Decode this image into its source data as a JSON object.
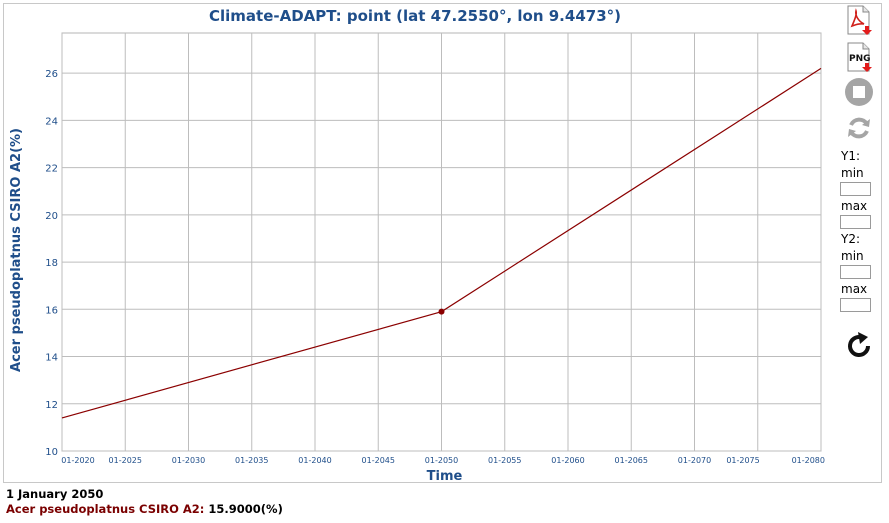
{
  "chart_data": {
    "type": "line",
    "title": "Climate-ADAPT: point (lat 47.2550°, lon 9.4473°)",
    "xlabel": "Time",
    "ylabel": "Acer pseudoplatnus CSIRO A2(%)",
    "x_ticks": [
      "01-2020",
      "01-2025",
      "01-2030",
      "01-2035",
      "01-2040",
      "01-2045",
      "01-2050",
      "01-2055",
      "01-2060",
      "01-2065",
      "01-2070",
      "01-2075",
      "01-2080"
    ],
    "y_ticks": [
      "10",
      "12",
      "14",
      "16",
      "18",
      "20",
      "22",
      "24",
      "26"
    ],
    "xlim": [
      2020,
      2080
    ],
    "ylim": [
      10,
      27.7
    ],
    "grid": true,
    "series": [
      {
        "name": "Acer pseudoplatnus CSIRO A2",
        "color": "#8b0000",
        "points": [
          {
            "x": 2020,
            "y": 11.4
          },
          {
            "x": 2050,
            "y": 15.9
          },
          {
            "x": 2080,
            "y": 26.2
          }
        ],
        "highlight": {
          "x": 2050,
          "y": 15.9
        }
      }
    ]
  },
  "tools": {
    "pdf_icon": "pdf-export-icon",
    "png_icon": "png-export-icon",
    "png_text": "PNG",
    "stop_icon": "stop-icon",
    "refresh_icon": "refresh-icon",
    "apply_icon": "reload-icon",
    "y1_label": "Y1:",
    "y2_label": "Y2:",
    "min_label": "min",
    "max_label": "max",
    "y1_min": "",
    "y1_max": "",
    "y2_min": "",
    "y2_max": ""
  },
  "info": {
    "date": "1 January 2050",
    "series_label": "Acer pseudoplatnus CSIRO A2:",
    "value": "15.9000(%)"
  }
}
